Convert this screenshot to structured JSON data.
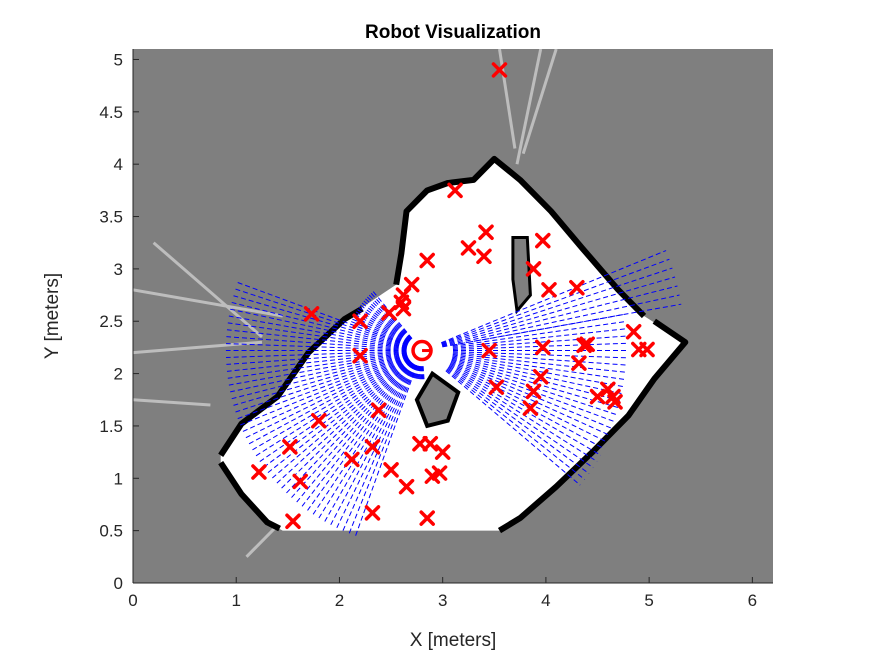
{
  "chart_data": {
    "type": "scatter",
    "title": "Robot Visualization",
    "xlabel": "X [meters]",
    "ylabel": "Y [meters]",
    "xlim": [
      0,
      6.2
    ],
    "ylim": [
      0,
      5.1
    ],
    "xticks": [
      0,
      1,
      2,
      3,
      4,
      5,
      6
    ],
    "yticks": [
      0,
      0.5,
      1,
      1.5,
      2,
      2.5,
      3,
      3.5,
      4,
      4.5,
      5
    ],
    "xtick_labels": [
      "0",
      "1",
      "2",
      "3",
      "4",
      "5",
      "6"
    ],
    "ytick_labels": [
      "0",
      "0.5",
      "1",
      "1.5",
      "2",
      "2.5",
      "3",
      "3.5",
      "4",
      "4.5",
      "5"
    ],
    "grid": false,
    "background_map": {
      "description": "occupancy grid",
      "unknown_color": "#7f7f7f",
      "free_color": "#ffffff",
      "occupied_color": "#000000",
      "free_polygon": [
        [
          0.85,
          1.25
        ],
        [
          1.05,
          1.55
        ],
        [
          1.4,
          1.78
        ],
        [
          1.7,
          2.22
        ],
        [
          2.05,
          2.55
        ],
        [
          2.2,
          2.62
        ],
        [
          2.55,
          2.85
        ],
        [
          2.6,
          3.15
        ],
        [
          2.65,
          3.55
        ],
        [
          2.85,
          3.75
        ],
        [
          3.05,
          3.85
        ],
        [
          3.3,
          3.85
        ],
        [
          3.5,
          4.05
        ],
        [
          3.75,
          3.85
        ],
        [
          4.05,
          3.55
        ],
        [
          4.35,
          3.2
        ],
        [
          4.7,
          2.8
        ],
        [
          4.95,
          2.55
        ],
        [
          5.35,
          2.3
        ],
        [
          5.05,
          1.95
        ],
        [
          4.8,
          1.6
        ],
        [
          4.45,
          1.25
        ],
        [
          4.1,
          0.92
        ],
        [
          3.75,
          0.62
        ],
        [
          3.55,
          0.5
        ],
        [
          1.45,
          0.5
        ],
        [
          1.3,
          0.58
        ],
        [
          1.05,
          0.85
        ],
        [
          0.85,
          1.15
        ]
      ],
      "obstacle_hole": [
        [
          2.75,
          1.75
        ],
        [
          2.9,
          2.0
        ],
        [
          3.15,
          1.82
        ],
        [
          3.05,
          1.55
        ],
        [
          2.85,
          1.5
        ]
      ],
      "inner_wall": [
        [
          3.68,
          3.3
        ],
        [
          3.82,
          3.3
        ],
        [
          3.85,
          2.75
        ],
        [
          3.72,
          2.6
        ],
        [
          3.68,
          2.9
        ]
      ],
      "walls": [
        [
          [
            0.85,
            1.22
          ],
          [
            1.05,
            1.52
          ],
          [
            1.4,
            1.78
          ],
          [
            1.7,
            2.2
          ],
          [
            2.05,
            2.52
          ],
          [
            2.22,
            2.62
          ]
        ],
        [
          [
            2.55,
            2.85
          ],
          [
            2.6,
            3.15
          ],
          [
            2.65,
            3.55
          ],
          [
            2.85,
            3.75
          ],
          [
            3.05,
            3.82
          ],
          [
            3.3,
            3.85
          ],
          [
            3.5,
            4.05
          ],
          [
            3.75,
            3.85
          ],
          [
            4.05,
            3.55
          ],
          [
            4.35,
            3.2
          ],
          [
            4.7,
            2.8
          ],
          [
            4.95,
            2.55
          ]
        ],
        [
          [
            5.05,
            2.5
          ],
          [
            5.35,
            2.3
          ],
          [
            5.05,
            1.95
          ],
          [
            4.8,
            1.6
          ],
          [
            4.45,
            1.25
          ],
          [
            4.1,
            0.92
          ],
          [
            3.75,
            0.62
          ],
          [
            3.55,
            0.5
          ]
        ],
        [
          [
            1.42,
            0.52
          ],
          [
            1.3,
            0.58
          ],
          [
            1.05,
            0.85
          ],
          [
            0.85,
            1.15
          ]
        ]
      ],
      "light_rays": [
        [
          [
            0.2,
            3.25
          ],
          [
            1.25,
            2.35
          ]
        ],
        [
          [
            0,
            2.8
          ],
          [
            1.45,
            2.55
          ]
        ],
        [
          [
            0,
            2.2
          ],
          [
            1.25,
            2.3
          ]
        ],
        [
          [
            0,
            1.75
          ],
          [
            0.75,
            1.7
          ]
        ],
        [
          [
            3.55,
            5.1
          ],
          [
            3.7,
            4.15
          ]
        ],
        [
          [
            3.95,
            5.1
          ],
          [
            3.72,
            4.0
          ]
        ],
        [
          [
            4.1,
            5.1
          ],
          [
            3.78,
            4.1
          ]
        ],
        [
          [
            1.1,
            0.25
          ],
          [
            1.4,
            0.55
          ]
        ],
        [
          [
            1.7,
            0.95
          ],
          [
            1.45,
            0.55
          ]
        ]
      ]
    },
    "robot": {
      "x": 2.8,
      "y": 2.22,
      "heading_deg": 0
    },
    "lidar_scan": {
      "color": "#0000ff",
      "sectors": [
        {
          "from_deg": 10,
          "to_deg": 22,
          "r_min": 0.2,
          "r_max": 2.55
        },
        {
          "from_deg": -40,
          "to_deg": 10,
          "r_min": 0.3,
          "r_max": 2.0
        },
        {
          "from_deg": 130,
          "to_deg": 160,
          "r_min": 0.15,
          "r_max": 0.75
        },
        {
          "from_deg": 160,
          "to_deg": 250,
          "r_min": 0.15,
          "r_max": 1.9
        },
        {
          "from_deg": 250,
          "to_deg": 275,
          "r_min": 0.15,
          "r_max": 0.3
        }
      ]
    },
    "series": [
      {
        "name": "",
        "marker": "x",
        "color": "#ff0000",
        "x": [
          3.55,
          3.12,
          2.85,
          2.7,
          2.62,
          2.6,
          2.62,
          2.48,
          2.2,
          1.73,
          3.25,
          3.42,
          3.4,
          3.97,
          3.88,
          4.03,
          4.3,
          4.85,
          4.37,
          4.4,
          4.9,
          4.98,
          3.45,
          3.52,
          3.97,
          3.95,
          3.88,
          3.85,
          4.32,
          4.6,
          4.5,
          4.65,
          4.67,
          2.2,
          2.38,
          1.8,
          1.52,
          1.22,
          1.62,
          1.55,
          2.12,
          2.32,
          2.32,
          2.5,
          2.65,
          2.78,
          2.88,
          3.0,
          2.9,
          2.97,
          2.85
        ],
        "y": [
          4.9,
          3.75,
          3.08,
          2.85,
          2.75,
          2.68,
          2.62,
          2.58,
          2.5,
          2.57,
          3.2,
          3.35,
          3.12,
          3.27,
          3.0,
          2.8,
          2.82,
          2.4,
          2.27,
          2.28,
          2.23,
          2.23,
          2.22,
          1.87,
          2.25,
          1.97,
          1.83,
          1.67,
          2.1,
          1.85,
          1.78,
          1.78,
          1.73,
          2.17,
          1.65,
          1.55,
          1.3,
          1.06,
          0.97,
          0.59,
          1.18,
          1.3,
          0.67,
          1.08,
          0.92,
          1.33,
          1.33,
          1.25,
          1.02,
          1.05,
          0.62
        ]
      }
    ],
    "robot_marker_color": "#ff0000"
  }
}
